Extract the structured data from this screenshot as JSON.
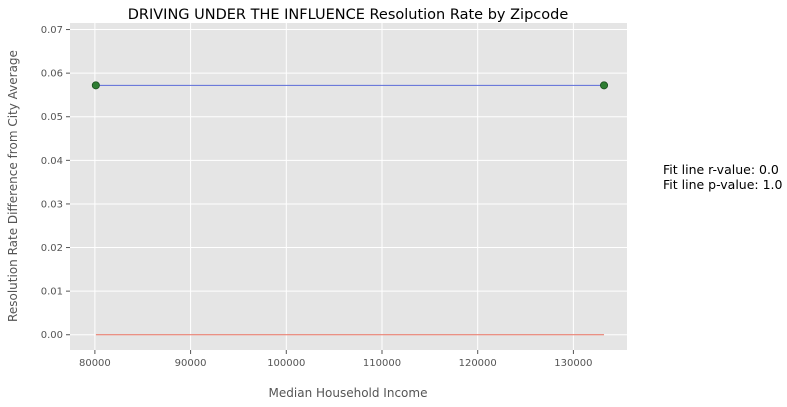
{
  "chart_data": {
    "type": "line",
    "title": "DRIVING UNDER THE INFLUENCE Resolution Rate by Zipcode",
    "xlabel": "Median Household Income",
    "ylabel": "Resolution Rate Difference from City Average",
    "xlim": [
      77400,
      135600
    ],
    "ylim": [
      -0.0035,
      0.0715
    ],
    "x_ticks": [
      80000,
      90000,
      100000,
      110000,
      120000,
      130000
    ],
    "y_ticks": [
      "0.00",
      "0.01",
      "0.02",
      "0.03",
      "0.04",
      "0.05",
      "0.06",
      "0.07"
    ],
    "grid": true,
    "points": [
      {
        "x": 80100,
        "y": 0.0572
      },
      {
        "x": 133200,
        "y": 0.0572
      }
    ],
    "fit_line": {
      "x": [
        80100,
        133200
      ],
      "y": [
        0.0572,
        0.0572
      ]
    },
    "zero_line": {
      "x": [
        80100,
        133200
      ],
      "y": [
        0.0,
        0.0
      ]
    },
    "colors": {
      "plot_bg": "#e5e5e5",
      "grid": "#ffffff",
      "fit_line": "#5a6bd8",
      "zero_line": "#e8705f",
      "point_fill": "#2e7d32",
      "point_edge": "#1b4d1f"
    },
    "annotations": [
      "Fit line r-value: 0.0",
      "Fit line p-value: 1.0"
    ]
  }
}
